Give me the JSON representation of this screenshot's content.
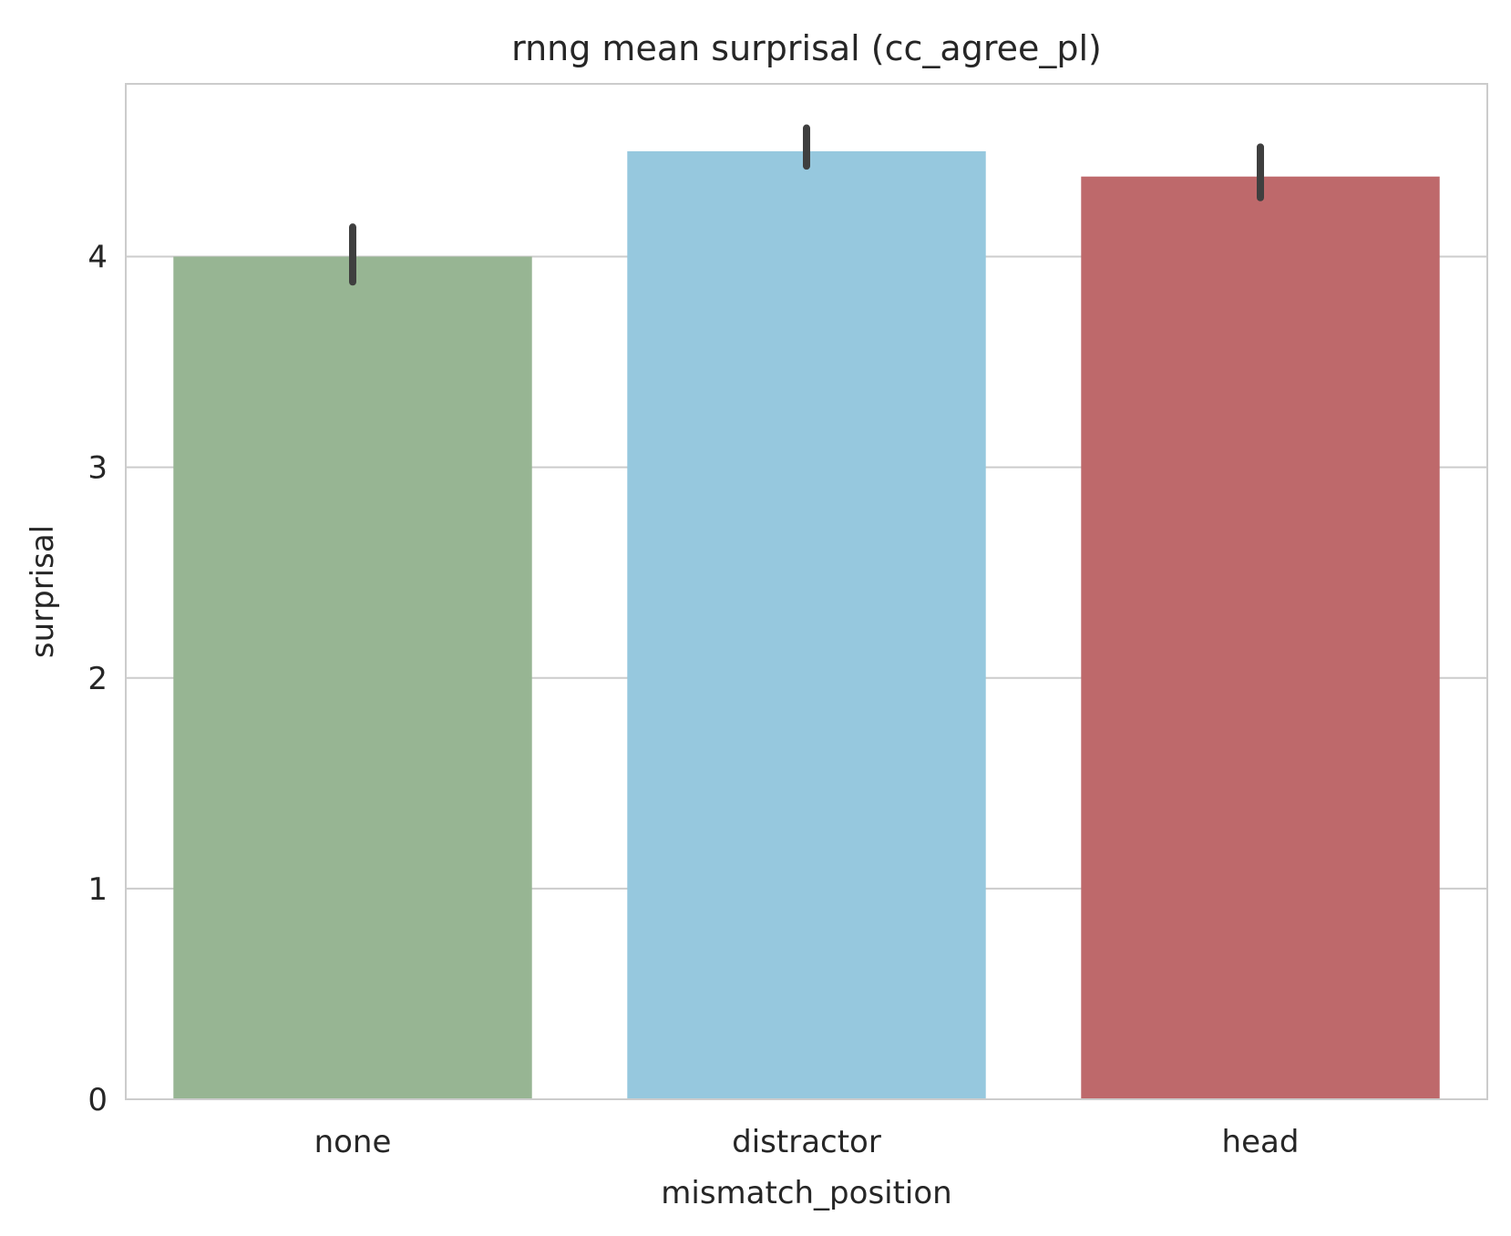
{
  "chart_data": {
    "type": "bar",
    "title": "rnng mean surprisal (cc_agree_pl)",
    "xlabel": "mismatch_position",
    "ylabel": "surprisal",
    "categories": [
      "none",
      "distractor",
      "head"
    ],
    "values": [
      4.0,
      4.5,
      4.38
    ],
    "error_low": [
      3.88,
      4.43,
      4.28
    ],
    "error_high": [
      4.14,
      4.61,
      4.52
    ],
    "colors": [
      "#97b593",
      "#96c8de",
      "#be696b"
    ],
    "ylim": [
      0,
      4.82
    ],
    "yticks": [
      0,
      1,
      2,
      3,
      4
    ],
    "grid": "horizontal",
    "grid_color": "#cccccc",
    "frame_color": "#cccccc",
    "errorbar_color": "#3f3f3f"
  }
}
